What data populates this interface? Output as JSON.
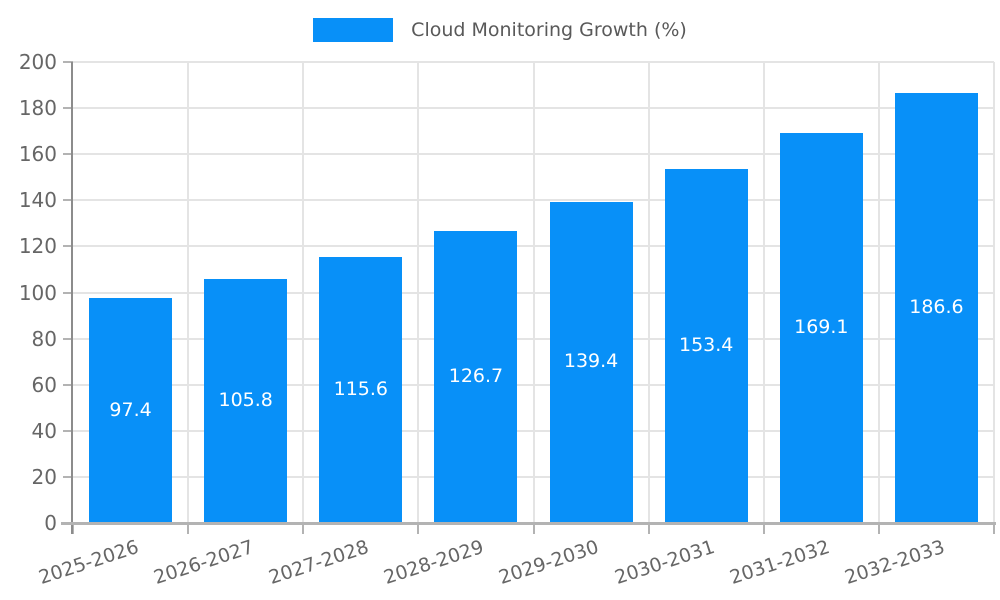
{
  "chart_data": {
    "type": "bar",
    "legend": {
      "label": "Cloud Monitoring Growth (%)"
    },
    "categories": [
      "2025-2026",
      "2026-2027",
      "2027-2028",
      "2028-2029",
      "2029-2030",
      "2030-2031",
      "2031-2032",
      "2032-2033"
    ],
    "series": [
      {
        "name": "Cloud Monitoring Growth (%)",
        "values": [
          97.4,
          105.8,
          115.6,
          126.7,
          139.4,
          153.4,
          169.1,
          186.6
        ]
      }
    ],
    "value_labels": [
      "97.4",
      "105.8",
      "115.6",
      "126.7",
      "139.4",
      "153.4",
      "169.1",
      "186.6"
    ],
    "xlabel": "",
    "ylabel": "",
    "ylim": [
      0,
      200
    ],
    "y_ticks": [
      0,
      20,
      40,
      60,
      80,
      100,
      120,
      140,
      160,
      180,
      200
    ],
    "grid": true,
    "legend_position": "top-center",
    "colors": {
      "bar": "#0890f8",
      "value_label": "#ffffff",
      "tick_label": "#666666",
      "legend_text": "#595959",
      "gridline": "#e4e4e4",
      "y_axis_line": "#8c8c8c",
      "x_axis_line": "#b3b3b3"
    }
  }
}
